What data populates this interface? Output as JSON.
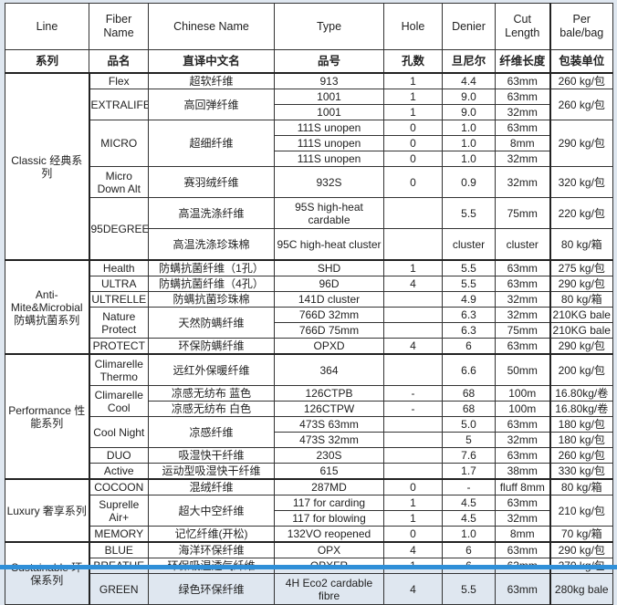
{
  "headers": {
    "en": [
      "Line",
      "Fiber Name",
      "Chinese Name",
      "Type",
      "Hole",
      "Denier",
      "Cut Length",
      "Per bale/bag"
    ],
    "zh": [
      "系列",
      "品名",
      "直译中文名",
      "品号",
      "孔数",
      "旦尼尔",
      "纤维长度",
      "包装单位"
    ]
  },
  "rows": [
    {
      "line": "Classic 经典系列",
      "span": {
        "line": 9
      },
      "fiber": "Flex",
      "chinese": "超软纤维",
      "type": "913",
      "hole": "1",
      "denier": "4.4",
      "cut": "63mm",
      "per": "260 kg/包"
    },
    {
      "fiber": "EXTRALIFE",
      "chinese": "高回弹纤维",
      "span": {
        "fiber": 2,
        "chinese": 2,
        "per": 2
      },
      "type": "1001",
      "hole": "1",
      "denier": "9.0",
      "cut": "63mm",
      "per": "260 kg/包"
    },
    {
      "type": "1001",
      "hole": "1",
      "denier": "9.0",
      "cut": "32mm"
    },
    {
      "fiber": "MICRO",
      "chinese": "超细纤维",
      "span": {
        "fiber": 3,
        "chinese": 3,
        "per": 3
      },
      "type": "111S unopen",
      "hole": "0",
      "denier": "1.0",
      "cut": "63mm",
      "per": "290 kg/包"
    },
    {
      "type": "111S unopen",
      "hole": "0",
      "denier": "1.0",
      "cut": "8mm"
    },
    {
      "type": "111S unopen",
      "hole": "0",
      "denier": "1.0",
      "cut": "32mm"
    },
    {
      "fiber": "Micro Down Alt",
      "chinese": "赛羽绒纤维",
      "type": "932S",
      "hole": "0",
      "denier": "0.9",
      "cut": "32mm",
      "per": "320 kg/包"
    },
    {
      "fiber": "95DEGREES",
      "span": {
        "fiber": 2
      },
      "chinese": "高温洗涤纤维",
      "type": "95S high-heat cardable",
      "hole": "",
      "denier": "5.5",
      "cut": "75mm",
      "per": "220 kg/包"
    },
    {
      "chinese": "高温洗涤珍珠棉",
      "type": "95C high-heat cluster",
      "hole": "",
      "denier": "cluster",
      "cut": "cluster",
      "per": "80 kg/箱"
    },
    {
      "line": "Anti-Mite&Microbial 防螨抗菌系列",
      "span": {
        "line": 6
      },
      "fiber": "Health",
      "chinese": "防螨抗菌纤维（1孔）",
      "type": "SHD",
      "hole": "1",
      "denier": "5.5",
      "cut": "63mm",
      "per": "275 kg/包"
    },
    {
      "fiber": "ULTRA",
      "chinese": "防螨抗菌纤维（4孔）",
      "type": "96D",
      "hole": "4",
      "denier": "5.5",
      "cut": "63mm",
      "per": "290 kg/包"
    },
    {
      "fiber": "ULTRELLE",
      "chinese": "防螨抗菌珍珠棉",
      "type": "141D cluster",
      "hole": "",
      "denier": "4.9",
      "cut": "32mm",
      "per": "80 kg/箱"
    },
    {
      "fiber": "Nature Protect",
      "chinese": "天然防螨纤维",
      "span": {
        "fiber": 2,
        "chinese": 2
      },
      "type": "766D 32mm",
      "hole": "",
      "denier": "6.3",
      "cut": "32mm",
      "per": "210KG bale"
    },
    {
      "type": "766D 75mm",
      "hole": "",
      "denier": "6.3",
      "cut": "75mm",
      "per": "210KG bale"
    },
    {
      "fiber": "PROTECT",
      "chinese": "环保防螨纤维",
      "type": "OPXD",
      "hole": "4",
      "denier": "6",
      "cut": "63mm",
      "per": "290 kg/包"
    },
    {
      "line": "Performance 性能系列",
      "span": {
        "line": 7
      },
      "fiber": "Climarelle Thermo",
      "chinese": "远红外保暖纤维",
      "type": "364",
      "hole": "",
      "denier": "6.6",
      "cut": "50mm",
      "per": "200 kg/包"
    },
    {
      "fiber": "Climarelle Cool",
      "span": {
        "fiber": 2
      },
      "chinese": "凉感无纺布 蓝色",
      "type": "126CTPB",
      "hole": "-",
      "denier": "68",
      "cut": "100m",
      "per": "16.80kg/卷"
    },
    {
      "chinese": "凉感无纺布 白色",
      "type": "126CTPW",
      "hole": "-",
      "denier": "68",
      "cut": "100m",
      "per": "16.80kg/卷"
    },
    {
      "fiber": "Cool Night",
      "chinese": "凉感纤维",
      "span": {
        "fiber": 2,
        "chinese": 2
      },
      "type": "473S  63mm",
      "hole": "",
      "denier": "5.0",
      "cut": "63mm",
      "per": "180 kg/包"
    },
    {
      "type": "473S  32mm",
      "hole": "",
      "denier": "5",
      "cut": "32mm",
      "per": "180 kg/包"
    },
    {
      "fiber": "DUO",
      "chinese": "吸湿快干纤维",
      "type": "230S",
      "hole": "",
      "denier": "7.6",
      "cut": "63mm",
      "per": "260 kg/包"
    },
    {
      "fiber": "Active",
      "chinese": "运动型吸湿快干纤维",
      "type": "615",
      "hole": "",
      "denier": "1.7",
      "cut": "38mm",
      "per": "330 kg/包"
    },
    {
      "line": "Luxury 奢享系列",
      "span": {
        "line": 4
      },
      "fiber": "COCOON",
      "chinese": "混绒纤维",
      "type": "287MD",
      "hole": "0",
      "denier": "-",
      "cut": "fluff  8mm",
      "per": "80 kg/箱"
    },
    {
      "fiber": "Suprelle Air+",
      "chinese": "超大中空纤维",
      "span": {
        "fiber": 2,
        "chinese": 2,
        "per": 2
      },
      "type": "117 for carding",
      "hole": "1",
      "denier": "4.5",
      "cut": "63mm",
      "per": "210 kg/包"
    },
    {
      "type": "117 for blowing",
      "hole": "1",
      "denier": "4.5",
      "cut": "32mm"
    },
    {
      "fiber": "MEMORY",
      "chinese": "记忆纤维(开松)",
      "type": "132VO  reopened",
      "hole": "0",
      "denier": "1.0",
      "cut": "8mm",
      "per": "70 kg/箱"
    },
    {
      "line": "Sustainable 环保系列",
      "span": {
        "line": 3
      },
      "fiber": "BLUE",
      "chinese": "海洋环保纤维",
      "type": "OPX",
      "hole": "4",
      "denier": "6",
      "cut": "63mm",
      "per": "290 kg/包"
    },
    {
      "fiber": "BREATHE",
      "chinese": "环保吸湿透气纤维",
      "type": "OPXFR",
      "hole": "1",
      "denier": "6",
      "cut": "63mm",
      "per": "270 kg/包"
    },
    {
      "fiber": "GREEN",
      "chinese": "绿色环保纤维",
      "type": "4H Eco2 cardable fibre",
      "hole": "4",
      "denier": "5.5",
      "cut": "63mm",
      "per": "280kg bale"
    }
  ]
}
